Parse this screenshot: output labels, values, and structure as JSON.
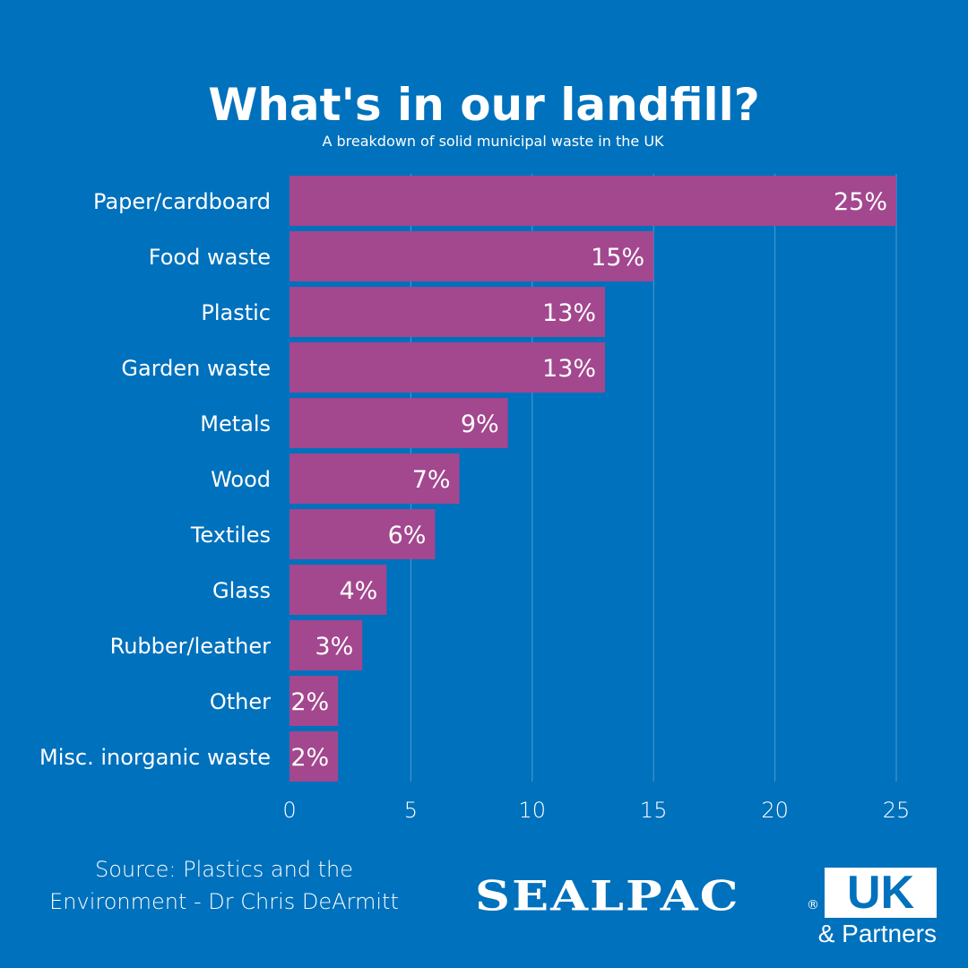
{
  "chart_data": {
    "type": "bar",
    "orientation": "horizontal",
    "title": "What's in our landfill?",
    "subtitle": "A breakdown of solid municipal waste in the UK",
    "categories": [
      "Paper/cardboard",
      "Food waste",
      "Plastic",
      "Garden waste",
      "Metals",
      "Wood",
      "Textiles",
      "Glass",
      "Rubber/leather",
      "Other",
      "Misc. inorganic waste"
    ],
    "values": [
      25,
      15,
      13,
      13,
      9,
      7,
      6,
      4,
      3,
      2,
      2
    ],
    "data_labels": [
      "25%",
      "15%",
      "13%",
      "13%",
      "9%",
      "7%",
      "6%",
      "4%",
      "3%",
      "2%",
      "2%"
    ],
    "xlim": [
      0,
      25
    ],
    "xticks": [
      "0",
      "5",
      "10",
      "15",
      "20",
      "25"
    ],
    "grid": true,
    "colors": {
      "background": "#0071bc",
      "bar": "#a3478f",
      "text": "#ffffff"
    }
  },
  "footer": {
    "source_line1": "Source: Plastics and the",
    "source_line2": "Environment - Dr Chris DeArmitt"
  },
  "logo": {
    "word": "SEALPAC",
    "reg": "®",
    "uk": "UK",
    "partners": "& Partners"
  }
}
